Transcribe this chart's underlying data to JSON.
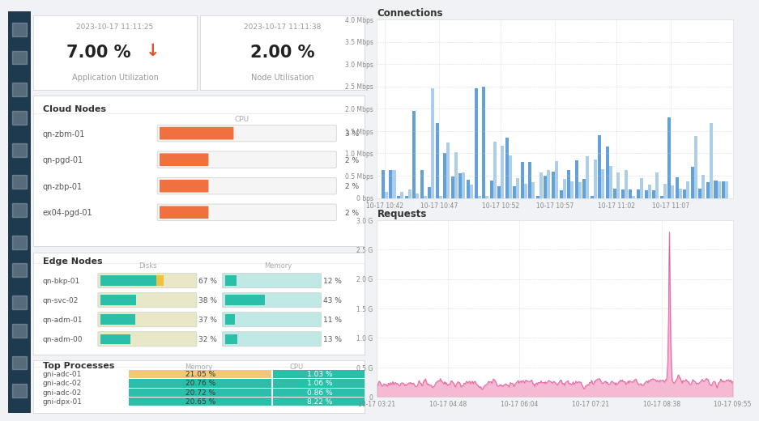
{
  "sidebar_color": "#1e3a4f",
  "bg_color": "#f0f2f5",
  "panel_color": "#ffffff",
  "title_date1": "2023-10-17 11:11:25",
  "title_date2": "2023-10-17 11:11:38",
  "metric1_label": "Application Utilization",
  "metric1_arrow_color": "#e8502a",
  "metric2_label": "Node Utilisation",
  "cloud_nodes_title": "Cloud Nodes",
  "cloud_nodes_cpu_label": "CPU",
  "cloud_nodes": [
    {
      "name": "qn-zbm-01",
      "cpu": 3
    },
    {
      "name": "qn-pgd-01",
      "cpu": 2
    },
    {
      "name": "qn-zbp-01",
      "cpu": 2
    },
    {
      "name": "ex04-pgd-01",
      "cpu": 2
    }
  ],
  "cloud_bar_color": "#f07040",
  "cloud_cpu_max": 7.0,
  "edge_nodes_title": "Edge Nodes",
  "edge_nodes": [
    {
      "name": "qn-bkp-01",
      "disk": 67,
      "memory": 12
    },
    {
      "name": "qn-svc-02",
      "disk": 38,
      "memory": 43
    },
    {
      "name": "qn-adm-01",
      "disk": 37,
      "memory": 11
    },
    {
      "name": "qn-adm-00",
      "disk": 32,
      "memory": 13
    }
  ],
  "disk_bar_color_filled": "#2bbfaa",
  "disk_bar_color_warn": "#f0c040",
  "disk_bar_color_empty": "#e8e8c8",
  "memory_bar_color_filled": "#2bbfaa",
  "memory_bar_color_empty": "#c0e8e4",
  "top_processes_title": "Top Processes",
  "top_processes": [
    {
      "name": "gni-adc-01",
      "memory": 21.05,
      "cpu": 1.03,
      "mem_color": "#f0c878"
    },
    {
      "name": "gni-adc-02",
      "memory": 20.76,
      "cpu": 1.06,
      "mem_color": "#2bbfaa"
    },
    {
      "name": "gni-adc-02",
      "memory": 20.72,
      "cpu": 0.86,
      "mem_color": "#2bbfaa"
    },
    {
      "name": "gni-dpx-01",
      "memory": 20.65,
      "cpu": 8.22,
      "mem_color": "#2bbfaa"
    }
  ],
  "proc_cpu_color": "#2bbfaa",
  "connections_title": "Connections",
  "conn_bar_dark": [
    0.63,
    0.62,
    0.05,
    0.05,
    1.95,
    0.62,
    0.25,
    1.67,
    1.0,
    0.48,
    0.56,
    0.41,
    2.46,
    2.5,
    0.4,
    0.26,
    1.35,
    0.27,
    0.8,
    0.8,
    0.05,
    0.5,
    0.59,
    0.18,
    0.63,
    0.85,
    0.42,
    0.05,
    1.4,
    1.15,
    0.21,
    0.2,
    0.2,
    0.2,
    0.18,
    0.18,
    0.05,
    1.8,
    0.47,
    0.2,
    0.7,
    0.21,
    0.35,
    0.4,
    0.37
  ],
  "conn_bar_light": [
    0.13,
    0.63,
    0.13,
    0.2,
    0.1,
    0.05,
    2.45,
    0.05,
    1.25,
    1.02,
    0.57,
    0.3,
    0.05,
    0.05,
    1.27,
    1.18,
    0.96,
    0.45,
    0.32,
    0.35,
    0.57,
    0.62,
    0.83,
    0.42,
    0.38,
    0.36,
    0.93,
    0.87,
    0.65,
    0.72,
    0.57,
    0.62,
    0.05,
    0.44,
    0.31,
    0.57,
    0.32,
    0.29,
    0.22,
    0.38,
    1.38,
    0.52,
    1.68,
    0.37,
    0.37
  ],
  "conn_yticks": [
    "0 bps",
    "0.5 Mbps",
    "1.0 Mbps",
    "1.5 Mbps",
    "2.0 Mbps",
    "2.5 Mbps",
    "3.0 Mbps",
    "3.5 Mbps",
    "4.0 Mbps"
  ],
  "conn_xticks": [
    "10-17 10:42",
    "10-17 10:47",
    "10-17 10:52",
    "10-17 10:57",
    "10-17 11:02",
    "10-17 11:07"
  ],
  "conn_xtick_pos": [
    0,
    7,
    15,
    22,
    30,
    37
  ],
  "requests_title": "Requests",
  "req_yticks": [
    "0",
    "0.5 G",
    "1.0 G",
    "1.5 G",
    "2.0 G",
    "2.5 G",
    "3.0 G"
  ],
  "req_xticks": [
    "10-17 03:21",
    "10-17 04:48",
    "10-17 06:04",
    "10-17 07:21",
    "10-17 08:38",
    "10-17 09:55"
  ],
  "req_fill_color": "#f080b0",
  "req_line_color": "#e060a0"
}
